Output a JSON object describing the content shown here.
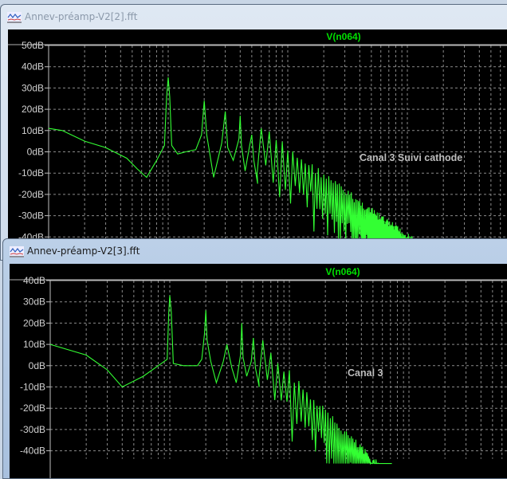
{
  "windows": [
    {
      "title": "Annev-préamp-V2[2].fft",
      "trace_name": "V(n064)",
      "annotation": "Canal 3 Suivi cathode"
    },
    {
      "title": "Annev-préamp-V2[3].fft",
      "trace_name": "V(n064)",
      "annotation": "Canal 3"
    }
  ],
  "chart_data": [
    {
      "type": "line",
      "title": "V(n064)",
      "xscale": "log",
      "x_unit_note": "",
      "yticks": [
        "50dB",
        "40dB",
        "30dB",
        "20dB",
        "10dB",
        "0dB",
        "-10dB",
        "-20dB",
        "-30dB",
        "-40dB"
      ],
      "ylim": [
        -40,
        50
      ],
      "grid": true,
      "trace_color": "#33ff33",
      "series": [
        {
          "name": "V(n064)",
          "points_harmonic_dB": [
            [
              0.1,
              11
            ],
            [
              0.13,
              10
            ],
            [
              0.2,
              5
            ],
            [
              0.3,
              2
            ],
            [
              0.45,
              -3
            ],
            [
              0.55,
              -8
            ],
            [
              0.66,
              -12
            ],
            [
              0.8,
              -4
            ],
            [
              0.93,
              3
            ],
            [
              0.97,
              26
            ],
            [
              1,
              35
            ],
            [
              1.03,
              26
            ],
            [
              1.07,
              3
            ],
            [
              1.2,
              -1
            ],
            [
              1.4,
              0
            ],
            [
              1.7,
              1
            ],
            [
              1.9,
              8
            ],
            [
              2,
              24
            ],
            [
              2.1,
              8
            ],
            [
              2.4,
              -12
            ],
            [
              2.8,
              4
            ],
            [
              3,
              19
            ],
            [
              3.15,
              2
            ],
            [
              3.5,
              -4
            ],
            [
              3.9,
              6
            ],
            [
              4,
              17
            ],
            [
              4.1,
              3
            ],
            [
              4.4,
              -9
            ],
            [
              4.8,
              3
            ],
            [
              5,
              8
            ],
            [
              5.2,
              -4
            ],
            [
              5.6,
              -15
            ]
          ],
          "harmonic_peaks_dB": [
            [
              6,
              13
            ],
            [
              10,
              3
            ],
            [
              20,
              -9
            ],
            [
              50,
              -26
            ],
            [
              100,
              -38
            ]
          ]
        }
      ]
    },
    {
      "type": "line",
      "title": "V(n064)",
      "xscale": "log",
      "yticks": [
        "40dB",
        "30dB",
        "20dB",
        "10dB",
        "0dB",
        "-10dB",
        "-20dB",
        "-30dB",
        "-40dB"
      ],
      "ylim": [
        -40,
        40
      ],
      "grid": true,
      "trace_color": "#33ff33",
      "series": [
        {
          "name": "V(n064)",
          "points_harmonic_dB": [
            [
              0.1,
              10
            ],
            [
              0.2,
              5
            ],
            [
              0.3,
              -2
            ],
            [
              0.4,
              -10
            ],
            [
              0.6,
              -5
            ],
            [
              0.85,
              1
            ],
            [
              0.95,
              3
            ],
            [
              0.98,
              25
            ],
            [
              1,
              33
            ],
            [
              1.03,
              25
            ],
            [
              1.07,
              1
            ],
            [
              1.3,
              0
            ],
            [
              1.7,
              0
            ],
            [
              1.85,
              3
            ],
            [
              1.95,
              15
            ],
            [
              2,
              26
            ],
            [
              2.05,
              12
            ],
            [
              2.2,
              2
            ],
            [
              2.45,
              -8
            ],
            [
              2.8,
              2
            ],
            [
              3,
              10
            ],
            [
              3.3,
              -1
            ],
            [
              3.6,
              -8
            ],
            [
              3.9,
              5
            ],
            [
              4,
              20
            ],
            [
              4.1,
              4
            ],
            [
              4.4,
              -5
            ],
            [
              4.8,
              2
            ],
            [
              5,
              13
            ],
            [
              5.2,
              -1
            ],
            [
              5.6,
              -10
            ]
          ],
          "harmonic_peaks_dB": [
            [
              6,
              12
            ],
            [
              10,
              -2
            ],
            [
              20,
              -20
            ],
            [
              45,
              -40
            ]
          ]
        }
      ]
    }
  ]
}
